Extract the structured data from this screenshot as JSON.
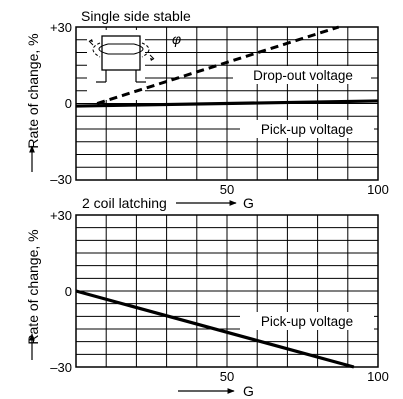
{
  "chart_data": [
    {
      "type": "line",
      "title": "Single side stable",
      "ylabel": "Rate of change, %",
      "xlim": [
        0,
        100
      ],
      "ylim": [
        -30,
        30
      ],
      "x_ticks": [
        50,
        100
      ],
      "y_ticks": [
        {
          "value": 30,
          "label": "+30"
        },
        {
          "value": 0,
          "label": "0"
        },
        {
          "value": -30,
          "label": "–30"
        }
      ],
      "grid": true,
      "series": [
        {
          "name": "Drop-out voltage",
          "style": "dashed",
          "x": [
            7,
            87
          ],
          "y": [
            0,
            30
          ]
        },
        {
          "name": "Pick-up voltage",
          "style": "solid",
          "x": [
            0,
            100
          ],
          "y": [
            -1,
            1
          ]
        }
      ],
      "annotations": [
        "φ"
      ],
      "inset_icon": "coil-magnetic-field-diagram-icon"
    },
    {
      "type": "line",
      "title": "2 coil latching",
      "ylabel": "Rate of change, %",
      "xlabel": "G",
      "xlim": [
        0,
        100
      ],
      "ylim": [
        -30,
        30
      ],
      "x_ticks": [
        50,
        100
      ],
      "y_ticks": [
        {
          "value": 30,
          "label": "+30"
        },
        {
          "value": 0,
          "label": "0"
        },
        {
          "value": -30,
          "label": "–30"
        }
      ],
      "grid": true,
      "series": [
        {
          "name": "Pick-up voltage",
          "style": "solid",
          "x": [
            0,
            92
          ],
          "y": [
            0,
            -30
          ]
        }
      ]
    }
  ]
}
